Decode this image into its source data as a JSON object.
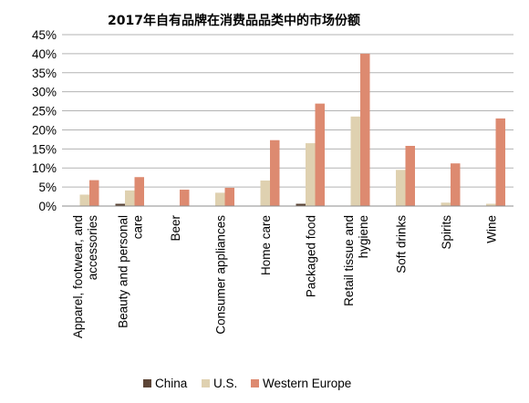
{
  "chart_data": {
    "type": "bar",
    "title": "2017年自有品牌在消费品品类中的市场份额",
    "categories": [
      [
        "Apparel, footwear, and",
        "accessories"
      ],
      [
        "Beauty and personal",
        "care"
      ],
      [
        "Beer"
      ],
      [
        "Consumer appliances"
      ],
      [
        "Home care"
      ],
      [
        "Packaged food"
      ],
      [
        "Retail tissue and",
        "hygiene"
      ],
      [
        "Soft drinks"
      ],
      [
        "Spirits"
      ],
      [
        "Wine"
      ]
    ],
    "series": [
      {
        "name": "China",
        "color": "#5c4536",
        "values": [
          0.0,
          0.6,
          0.0,
          0.0,
          0.0,
          0.6,
          0.0,
          0.0,
          0.0,
          0.0
        ]
      },
      {
        "name": "U.S.",
        "color": "#dfd1b0",
        "values": [
          3.0,
          4.1,
          0.0,
          3.5,
          6.7,
          16.5,
          23.5,
          9.5,
          0.9,
          0.6
        ]
      },
      {
        "name": "Western Europe",
        "color": "#dd8a70",
        "values": [
          6.8,
          7.6,
          4.3,
          4.8,
          17.3,
          26.9,
          40.0,
          15.8,
          11.2,
          23.0
        ]
      }
    ],
    "ylim": [
      0,
      45
    ],
    "yticks": [
      0,
      5,
      10,
      15,
      20,
      25,
      30,
      35,
      40,
      45
    ],
    "ytick_suffix": "%",
    "grid": true,
    "legend_position": "bottom"
  }
}
